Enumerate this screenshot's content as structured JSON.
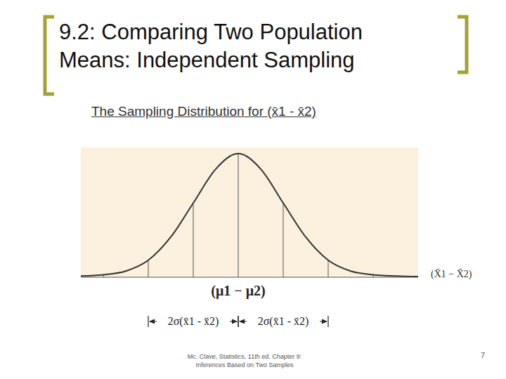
{
  "title_lines": [
    "9.2: Comparing Two Population",
    "Means: Independent Sampling"
  ],
  "subtitle": "The Sampling Distribution for (x̄1 - x̄2)",
  "chart_data": {
    "type": "line",
    "x": [
      -3.5,
      -3,
      -2.5,
      -2,
      -1.5,
      -1,
      -0.5,
      0,
      0.5,
      1,
      1.5,
      2,
      2.5,
      3,
      3.5,
      4
    ],
    "values": [
      0.004,
      0.008,
      0.02,
      0.055,
      0.13,
      0.24,
      0.35,
      0.4,
      0.35,
      0.24,
      0.13,
      0.055,
      0.02,
      0.008,
      0.004,
      0.002
    ],
    "color": "#333333",
    "xlim": [
      -3.5,
      4
    ],
    "ylim": [
      0,
      0.42
    ],
    "tick_labels": false,
    "xlabel": "(X̄1 − X̄2)",
    "reference_lines": [
      -3,
      -2,
      -1,
      0,
      1,
      2,
      3
    ],
    "center_label": {
      "text": "(μ1 − μ2)",
      "x": 0
    },
    "annotations": [
      {
        "text": "2σ(x̄1 - x̄2)",
        "from": -2,
        "to": 0
      },
      {
        "text": "2σ(x̄1 - x̄2)",
        "from": 0,
        "to": 2
      }
    ]
  },
  "footer_lines": [
    "Mc. Clave, Statistics, 11th ed. Chapter 9:",
    "Inferences Based on Two Samples"
  ],
  "page_number": 7
}
